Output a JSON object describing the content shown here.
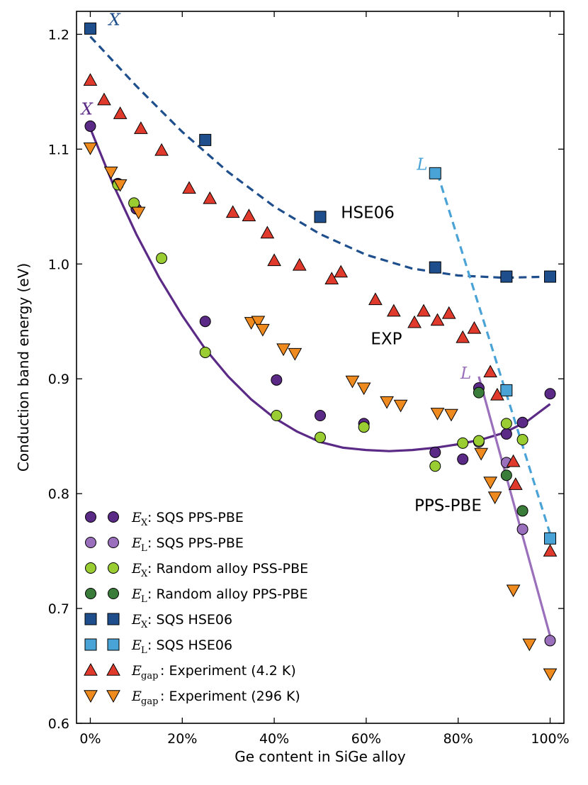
{
  "chart_data": {
    "type": "scatter",
    "xlabel": "Ge content in SiGe alloy",
    "ylabel": "Conduction band energy (eV)",
    "xlim": [
      -3,
      103
    ],
    "ylim": [
      0.6,
      1.22
    ],
    "xticks": [
      0,
      20,
      40,
      60,
      80,
      100
    ],
    "xtick_labels": [
      "0%",
      "20%",
      "40%",
      "60%",
      "80%",
      "100%"
    ],
    "yticks": [
      0.6,
      0.7,
      0.8,
      0.9,
      1.0,
      1.1,
      1.2
    ],
    "ytick_labels": [
      "0.6",
      "0.7",
      "0.8",
      "0.9",
      "1.0",
      "1.1",
      "1.2"
    ],
    "series": [
      {
        "id": "ex-sqs-pps",
        "name": "SQS PPS-PBE",
        "symbol": "E",
        "sub": "X",
        "marker": "circle",
        "color": "#5b2a86",
        "points": [
          [
            0,
            1.12
          ],
          [
            6,
            1.07
          ],
          [
            10,
            1.048
          ],
          [
            25,
            0.95
          ],
          [
            40.5,
            0.899
          ],
          [
            50,
            0.868
          ],
          [
            59.5,
            0.861
          ],
          [
            75,
            0.836
          ],
          [
            81,
            0.83
          ],
          [
            84.5,
            0.892
          ],
          [
            90.5,
            0.852
          ],
          [
            94,
            0.862
          ],
          [
            100,
            0.887
          ]
        ]
      },
      {
        "id": "el-sqs-pps",
        "name": "SQS PPS-PBE",
        "symbol": "E",
        "sub": "L",
        "marker": "circle",
        "color": "#9a6fbb",
        "points": [
          [
            84.5,
            0.845
          ],
          [
            90.5,
            0.827
          ],
          [
            94,
            0.769
          ],
          [
            100,
            0.672
          ]
        ]
      },
      {
        "id": "ex-random-pss",
        "name": "Random alloy PSS-PBE",
        "symbol": "E",
        "sub": "X",
        "marker": "circle",
        "color": "#9acd32",
        "points": [
          [
            6,
            1.069
          ],
          [
            9.5,
            1.053
          ],
          [
            15.5,
            1.005
          ],
          [
            25,
            0.923
          ],
          [
            40.5,
            0.868
          ],
          [
            50,
            0.849
          ],
          [
            59.5,
            0.858
          ],
          [
            75,
            0.824
          ],
          [
            81,
            0.844
          ],
          [
            84.5,
            0.846
          ],
          [
            90.5,
            0.861
          ],
          [
            94,
            0.847
          ]
        ]
      },
      {
        "id": "el-random-pps",
        "name": "Random alloy PPS-PBE",
        "symbol": "E",
        "sub": "L",
        "marker": "circle",
        "color": "#3a7d3a",
        "points": [
          [
            84.5,
            0.888
          ],
          [
            90.5,
            0.816
          ],
          [
            94,
            0.785
          ]
        ]
      },
      {
        "id": "ex-sqs-hse",
        "name": "SQS HSE06",
        "symbol": "E",
        "sub": "X",
        "marker": "square",
        "color": "#1f4e8c",
        "points": [
          [
            0,
            1.205
          ],
          [
            25,
            1.108
          ],
          [
            50,
            1.041
          ],
          [
            75,
            0.997
          ],
          [
            90.5,
            0.989
          ],
          [
            100,
            0.989
          ]
        ]
      },
      {
        "id": "el-sqs-hse",
        "name": "SQS HSE06",
        "symbol": "E",
        "sub": "L",
        "marker": "square",
        "color": "#4aa3d6",
        "points": [
          [
            75,
            1.079
          ],
          [
            90.5,
            0.89
          ],
          [
            100,
            0.761
          ]
        ]
      },
      {
        "id": "egap-exp-4k",
        "name": "Experiment (4.2 K)",
        "symbol": "E",
        "sub": "gap",
        "marker": "triangle-up",
        "color": "#e03a2c",
        "points": [
          [
            0,
            1.16
          ],
          [
            3,
            1.143
          ],
          [
            6.5,
            1.131
          ],
          [
            11,
            1.118
          ],
          [
            15.5,
            1.099
          ],
          [
            21.5,
            1.066
          ],
          [
            26,
            1.057
          ],
          [
            31,
            1.045
          ],
          [
            34.5,
            1.042
          ],
          [
            38.5,
            1.027
          ],
          [
            40,
            1.003
          ],
          [
            45.5,
            0.999
          ],
          [
            52.5,
            0.987
          ],
          [
            54.5,
            0.993
          ],
          [
            62,
            0.969
          ],
          [
            66,
            0.959
          ],
          [
            70.5,
            0.949
          ],
          [
            72.5,
            0.959
          ],
          [
            75.5,
            0.951
          ],
          [
            78,
            0.957
          ],
          [
            81,
            0.936
          ],
          [
            83.5,
            0.944
          ],
          [
            87,
            0.906
          ],
          [
            88.5,
            0.886
          ],
          [
            92,
            0.828
          ],
          [
            92.5,
            0.808
          ],
          [
            100,
            0.75
          ]
        ]
      },
      {
        "id": "egap-exp-296k",
        "name": "Experiment (296 K)",
        "symbol": "E",
        "sub": "gap",
        "marker": "triangle-down",
        "color": "#ee8a1e",
        "points": [
          [
            0,
            1.101
          ],
          [
            4.5,
            1.08
          ],
          [
            6.5,
            1.069
          ],
          [
            10.5,
            1.045
          ],
          [
            35,
            0.949
          ],
          [
            36.5,
            0.95
          ],
          [
            37.5,
            0.943
          ],
          [
            42,
            0.926
          ],
          [
            44.5,
            0.922
          ],
          [
            57,
            0.898
          ],
          [
            59.5,
            0.892
          ],
          [
            64.5,
            0.88
          ],
          [
            67.5,
            0.877
          ],
          [
            75.5,
            0.87
          ],
          [
            78.5,
            0.869
          ],
          [
            85,
            0.835
          ],
          [
            87,
            0.81
          ],
          [
            88,
            0.797
          ],
          [
            92,
            0.716
          ],
          [
            95.5,
            0.669
          ],
          [
            100,
            0.643
          ]
        ]
      }
    ],
    "fit_lines": [
      {
        "id": "fit-hse-x",
        "color": "#1f4e8c",
        "style": "dashed",
        "points": [
          [
            0,
            1.198
          ],
          [
            10,
            1.155
          ],
          [
            20,
            1.115
          ],
          [
            30,
            1.08
          ],
          [
            40,
            1.05
          ],
          [
            50,
            1.026
          ],
          [
            60,
            1.008
          ],
          [
            70,
            0.996
          ],
          [
            80,
            0.99
          ],
          [
            90,
            0.988
          ],
          [
            100,
            0.989
          ]
        ]
      },
      {
        "id": "fit-hse-l",
        "color": "#4aa3d6",
        "style": "dashed",
        "points": [
          [
            75.5,
            1.079
          ],
          [
            100,
            0.765
          ]
        ]
      },
      {
        "id": "fit-pps-x",
        "color": "#5b2a86",
        "style": "solid",
        "points": [
          [
            0,
            1.118
          ],
          [
            5,
            1.069
          ],
          [
            10,
            1.026
          ],
          [
            15,
            0.988
          ],
          [
            20,
            0.955
          ],
          [
            25,
            0.926
          ],
          [
            30,
            0.902
          ],
          [
            35,
            0.882
          ],
          [
            40,
            0.866
          ],
          [
            45,
            0.854
          ],
          [
            50,
            0.845
          ],
          [
            55,
            0.84
          ],
          [
            60,
            0.838
          ],
          [
            65,
            0.837
          ],
          [
            70,
            0.838
          ],
          [
            75,
            0.84
          ],
          [
            80,
            0.843
          ],
          [
            85,
            0.847
          ],
          [
            90,
            0.853
          ],
          [
            95,
            0.863
          ],
          [
            100,
            0.878
          ]
        ]
      },
      {
        "id": "fit-pps-l",
        "color": "#9a6fbb",
        "style": "solid",
        "points": [
          [
            84.5,
            0.902
          ],
          [
            100,
            0.676
          ]
        ]
      }
    ],
    "annotations": [
      {
        "id": "x-hse",
        "text": "X",
        "x": 4,
        "y": 1.208,
        "color": "#1f4e8c",
        "math": true
      },
      {
        "id": "x-pps",
        "text": "X",
        "x": -2,
        "y": 1.13,
        "color": "#5b2a86",
        "math": true
      },
      {
        "id": "l-hse",
        "text": "L",
        "x": 71,
        "y": 1.082,
        "color": "#4aa3d6",
        "math": true
      },
      {
        "id": "l-pps",
        "text": "L",
        "x": 80.5,
        "y": 0.9,
        "color": "#9a6fbb",
        "math": true
      },
      {
        "id": "hse06",
        "text": "HSE06",
        "x": 54.5,
        "y": 1.04,
        "color": "#000000",
        "math": false
      },
      {
        "id": "exp",
        "text": "EXP",
        "x": 61,
        "y": 0.93,
        "color": "#000000",
        "math": false
      },
      {
        "id": "pps-pbe",
        "text": "PPS-PBE",
        "x": 70.5,
        "y": 0.785,
        "color": "#000000",
        "math": false
      }
    ],
    "legend": {
      "location": "lower-left"
    }
  }
}
